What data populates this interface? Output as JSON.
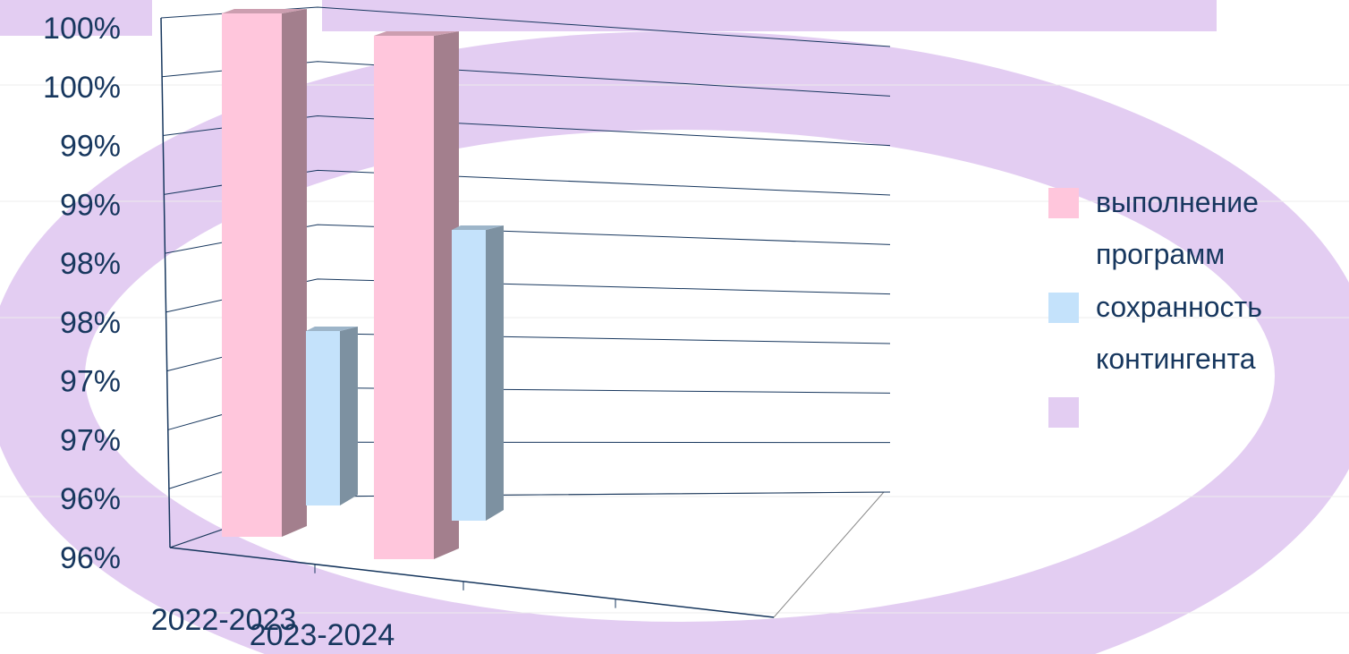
{
  "chart_data": {
    "type": "bar3d",
    "categories": [
      "2022-2023",
      "2023-2024"
    ],
    "series": [
      {
        "name": "выполнение программ",
        "color": "#ffc6dc",
        "values": [
          100,
          100
        ]
      },
      {
        "name": "сохранность контингента",
        "color": "#c4e2fb",
        "values": [
          97,
          98
        ]
      },
      {
        "color": "#e3cdf2",
        "values": [
          null,
          null
        ]
      }
    ],
    "ylim": [
      95.5,
      100
    ],
    "yticks": [
      {
        "value": 95.5,
        "label": "96%"
      },
      {
        "value": 96,
        "label": "96%"
      },
      {
        "value": 96.5,
        "label": "97%"
      },
      {
        "value": 97,
        "label": "97%"
      },
      {
        "value": 97.5,
        "label": "98%"
      },
      {
        "value": 98,
        "label": "98%"
      },
      {
        "value": 98.5,
        "label": "99%"
      },
      {
        "value": 99,
        "label": "99%"
      },
      {
        "value": 99.5,
        "label": "100%"
      },
      {
        "value": 100,
        "label": "100%"
      }
    ],
    "grid": true,
    "legend": "right"
  }
}
